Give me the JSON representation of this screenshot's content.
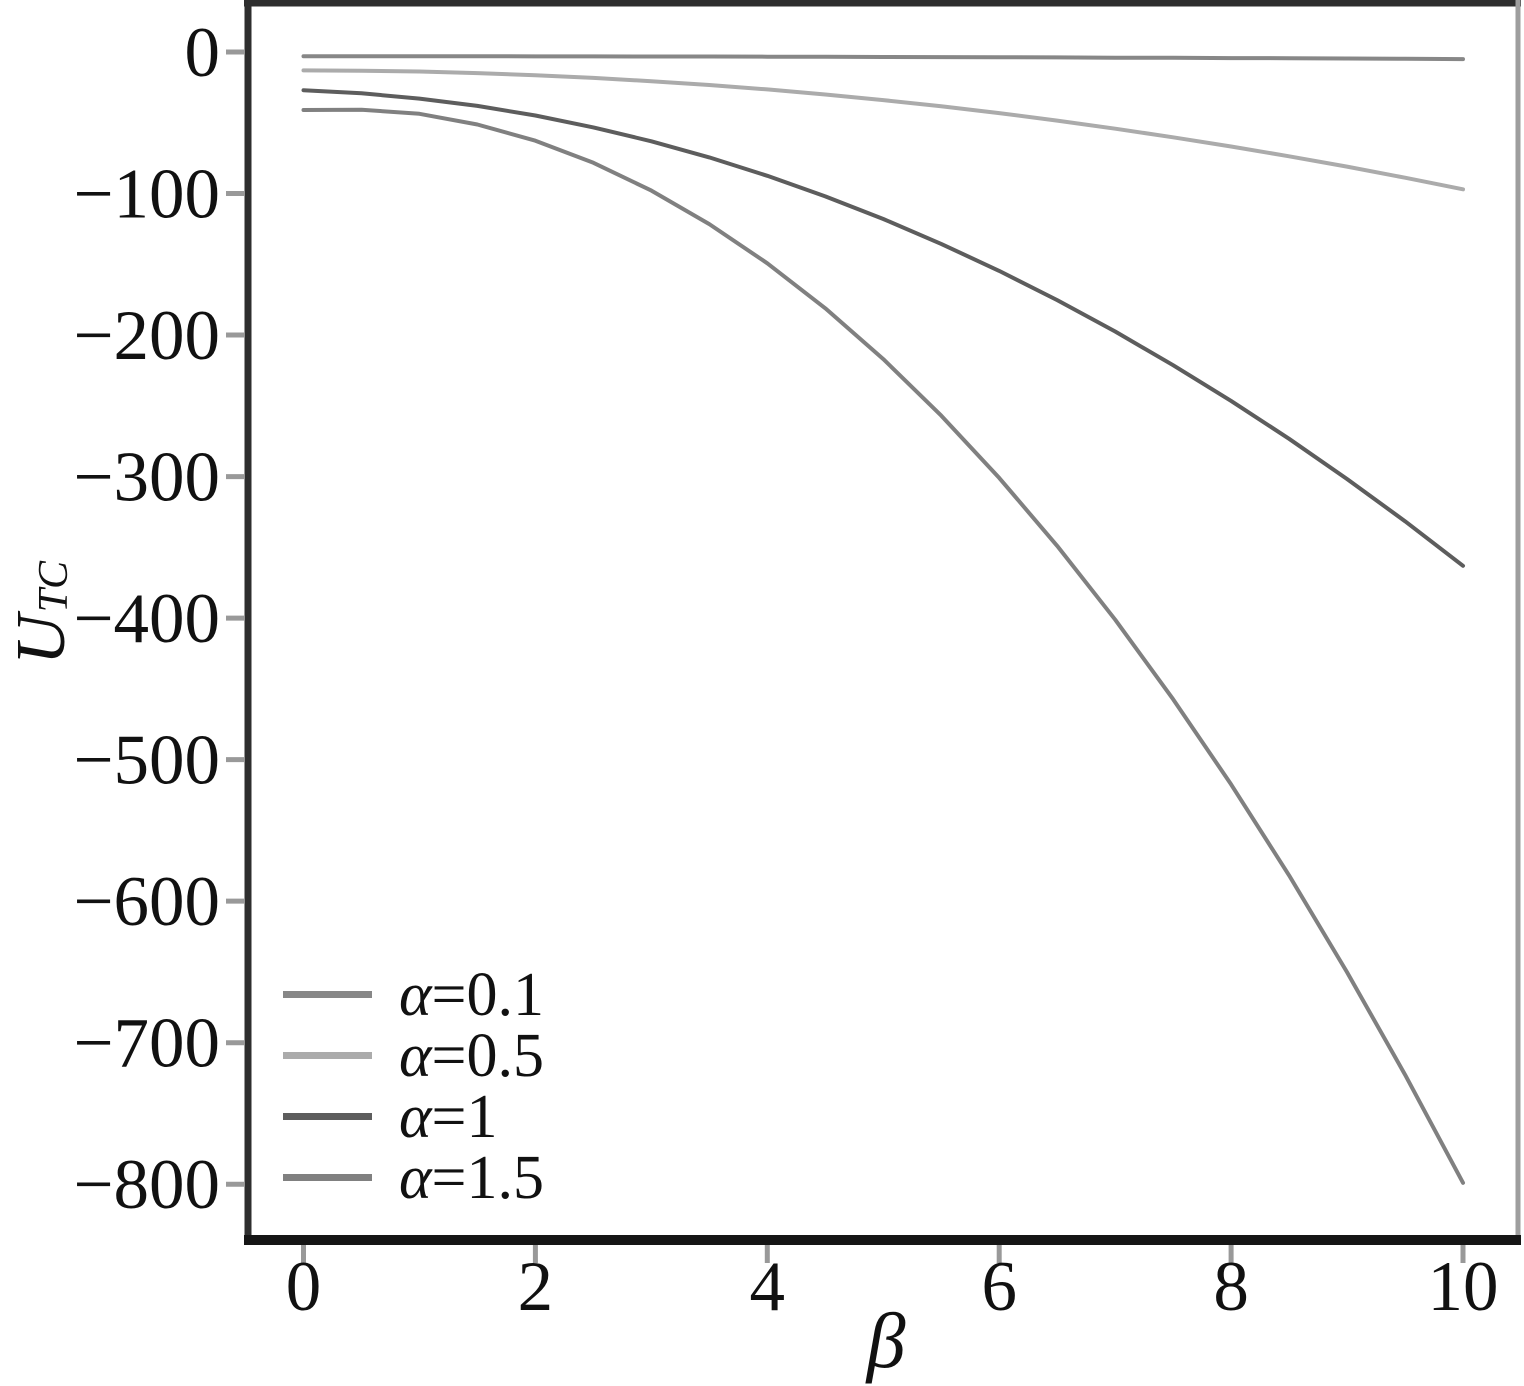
{
  "figure": {
    "background": "#ffffff"
  },
  "chart_data": {
    "type": "line",
    "title": "",
    "xlabel": "β",
    "ylabel": "U",
    "ylabel_subscript": "TC",
    "grid": false,
    "xlim": [
      -0.5,
      10.5
    ],
    "ylim": [
      -840,
      35
    ],
    "xticks": [
      0,
      2,
      4,
      6,
      8,
      10
    ],
    "xtick_labels": [
      "0",
      "2",
      "4",
      "6",
      "8",
      "10"
    ],
    "ytick_values": [
      0,
      -100,
      -200,
      -300,
      -400,
      -500,
      -600,
      -700,
      -800
    ],
    "ytick_labels": [
      "0",
      "−100",
      "−200",
      "−300",
      "−400",
      "−500",
      "−600",
      "−700",
      "−800"
    ],
    "x": [
      0,
      0.5,
      1,
      1.5,
      2,
      2.5,
      3,
      3.5,
      4,
      4.5,
      5,
      5.5,
      6,
      6.5,
      7,
      7.5,
      8,
      8.5,
      9,
      9.5,
      10
    ],
    "series": [
      {
        "name": "α=0.1",
        "alpha": 0.1,
        "color": "#878787",
        "values": [
          -3.0,
          -3.0,
          -3.0,
          -3.0,
          -3.1,
          -3.1,
          -3.2,
          -3.2,
          -3.3,
          -3.4,
          -3.5,
          -3.6,
          -3.7,
          -3.8,
          -4.0,
          -4.1,
          -4.3,
          -4.4,
          -4.6,
          -4.8,
          -5.0
        ]
      },
      {
        "name": "α=0.5",
        "alpha": 0.5,
        "color": "#ababab",
        "values": [
          -13.0,
          -13.2,
          -13.8,
          -14.9,
          -16.4,
          -18.3,
          -20.6,
          -23.3,
          -26.4,
          -30.0,
          -34.0,
          -38.4,
          -43.2,
          -48.5,
          -54.2,
          -60.3,
          -66.8,
          -73.7,
          -81.0,
          -88.8,
          -97.0
        ]
      },
      {
        "name": "α=1",
        "alpha": 1,
        "color": "#5d5d5d",
        "values": [
          -27.0,
          -29.2,
          -32.9,
          -38.1,
          -44.9,
          -53.3,
          -63.1,
          -74.5,
          -87.5,
          -102.0,
          -118.0,
          -135.6,
          -154.7,
          -175.3,
          -197.5,
          -221.3,
          -246.5,
          -273.3,
          -301.7,
          -331.5,
          -363.0
        ]
      },
      {
        "name": "α=1.5",
        "alpha": 1.5,
        "color": "#808080",
        "values": [
          -41.0,
          -40.8,
          -43.7,
          -51.2,
          -62.7,
          -78.3,
          -97.9,
          -121.6,
          -149.3,
          -181.1,
          -217.0,
          -256.9,
          -300.9,
          -349.0,
          -401.1,
          -457.3,
          -517.5,
          -581.8,
          -650.1,
          -722.5,
          -799.0
        ]
      }
    ],
    "legend": {
      "position": "lower left",
      "items": [
        {
          "sym": "α",
          "val": "=0.1"
        },
        {
          "sym": "α",
          "val": "=0.5"
        },
        {
          "sym": "α",
          "val": "=1"
        },
        {
          "sym": "α",
          "val": "=1.5"
        }
      ]
    },
    "style": {
      "axis_color": "#2e2e2e",
      "bottom_axis_color": "#151515",
      "right_spine_color": "#9e9e9e",
      "tick_color": "#999999",
      "text_color": "#111111",
      "line_width": 4
    }
  }
}
